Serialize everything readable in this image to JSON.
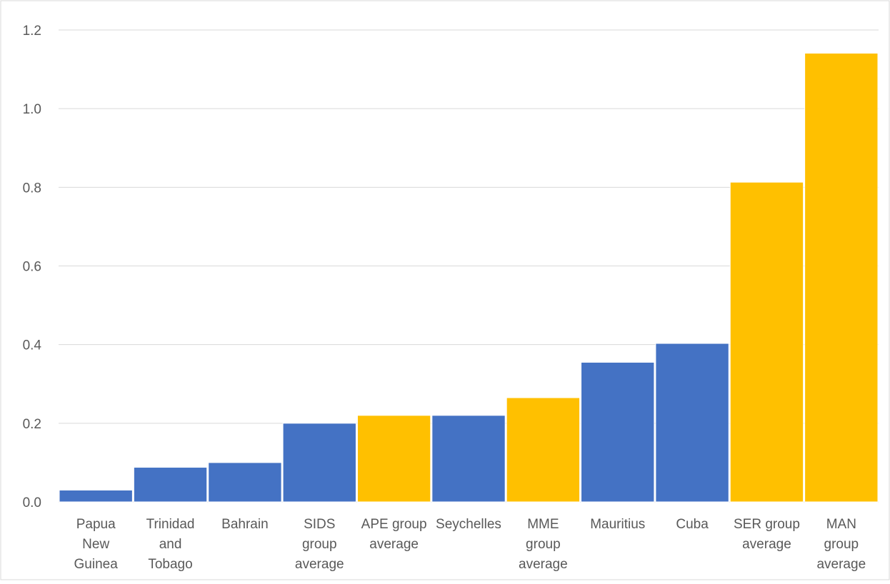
{
  "chart_data": {
    "type": "bar",
    "title": "",
    "xlabel": "",
    "ylabel": "",
    "ylim": [
      0,
      1.2
    ],
    "yticks": [
      "0.0",
      "0.2",
      "0.4",
      "0.6",
      "0.8",
      "1.0",
      "1.2"
    ],
    "grid": true,
    "legend": "none",
    "colors": {
      "country": "#4472C4",
      "group_average": "#FFC000",
      "gridline": "#D9D9D9",
      "axis_text": "#595959"
    },
    "categories": [
      "Papua New Guinea",
      "Trinidad and Tobago",
      "Bahrain",
      "SIDS group average",
      "APE group average",
      "Seychelles",
      "MME group average",
      "Mauritius",
      "Cuba",
      "SER group average",
      "MAN group average"
    ],
    "category_lines": [
      [
        "Papua",
        "New",
        "Guinea"
      ],
      [
        "Trinidad",
        "and",
        "Tobago"
      ],
      [
        "Bahrain"
      ],
      [
        "SIDS",
        "group",
        "average"
      ],
      [
        "APE group",
        "average"
      ],
      [
        "Seychelles"
      ],
      [
        "MME",
        "group",
        "average"
      ],
      [
        "Mauritius"
      ],
      [
        "Cuba"
      ],
      [
        "SER group",
        "average"
      ],
      [
        "MAN",
        "group",
        "average"
      ]
    ],
    "values": [
      0.03,
      0.088,
      0.1,
      0.2,
      0.22,
      0.22,
      0.265,
      0.355,
      0.403,
      0.813,
      1.141
    ],
    "bar_kinds": [
      "country",
      "country",
      "country",
      "country",
      "group_average",
      "country",
      "group_average",
      "country",
      "country",
      "group_average",
      "group_average"
    ]
  }
}
